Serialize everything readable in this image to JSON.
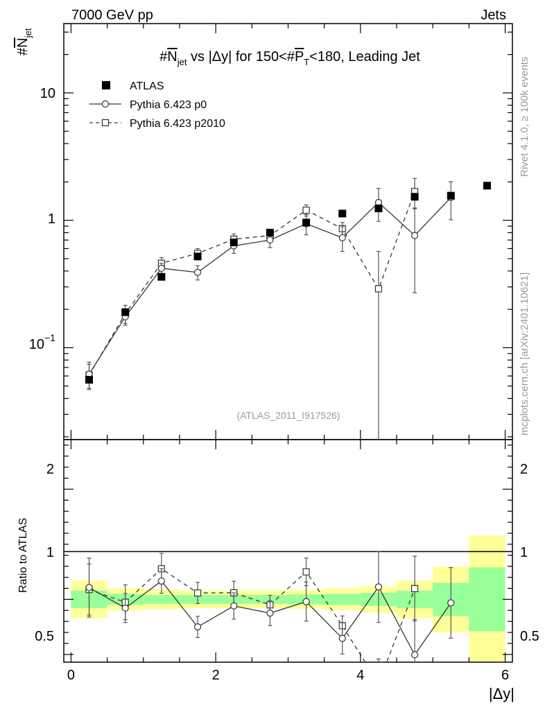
{
  "header": {
    "left": "7000 GeV pp",
    "right": "Jets"
  },
  "side_text": {
    "rivet": "Rivet 4.1.0, ≥ 100k events",
    "mcplots": "mcplots.cern.ch [arXiv:2401.10621]"
  },
  "watermark": "(ATLAS_2011_I917526)",
  "chart_data": {
    "type": "scatter",
    "title": "#N_jet vs |Δy| for 150<#P_T<180, Leading Jet",
    "title_parts": {
      "a": "#",
      "b": "N",
      "b_sub": "jet",
      "c": " vs |Δy| for 150<#",
      "d": "P",
      "d_sub": "T",
      "e": "<180, Leading Jet"
    },
    "ylabel": "#N_jet",
    "ylabel_parts": {
      "a": "#",
      "b": "N",
      "sub": "jet"
    },
    "xlabel": "|Δy|",
    "ratio_ylabel": "Ratio to ATLAS",
    "xlim": [
      -0.1,
      6.1
    ],
    "ylim": [
      0.019,
      35
    ],
    "yscale": "log",
    "ratio_ylim": [
      0.43,
      2.45
    ],
    "x_ticks": [
      0,
      2,
      4,
      6
    ],
    "x_tick_labels": [
      "0",
      "2",
      "4",
      "6"
    ],
    "y_tick_labels": [
      {
        "value": 10,
        "mantissa": "10",
        "exp": ""
      },
      {
        "value": 1,
        "mantissa": "1",
        "exp": ""
      },
      {
        "value": 0.1,
        "mantissa": "10",
        "exp": "−1"
      }
    ],
    "ratio_ticks": [
      0.5,
      1,
      2
    ],
    "ratio_tick_labels": [
      "0.5",
      "1",
      "2"
    ],
    "legend": [
      "ATLAS",
      "Pythia 6.423 p0",
      "Pythia 6.423 p2010"
    ],
    "data": {
      "name": "ATLAS",
      "x": [
        0.25,
        0.75,
        1.25,
        1.75,
        2.25,
        2.75,
        3.25,
        3.75,
        4.25,
        4.75,
        5.25,
        5.75
      ],
      "y": [
        0.056,
        0.19,
        0.36,
        0.52,
        0.67,
        0.8,
        0.96,
        1.13,
        1.24,
        1.53,
        1.56,
        1.87
      ],
      "stat_band": [
        0.08,
        0.05,
        0.04,
        0.04,
        0.04,
        0.04,
        0.045,
        0.05,
        0.06,
        0.08,
        0.15,
        0.29
      ],
      "total_band": [
        0.17,
        0.1,
        0.09,
        0.08,
        0.08,
        0.08,
        0.085,
        0.1,
        0.12,
        0.17,
        0.3,
        0.58
      ]
    },
    "series": [
      {
        "name": "Pythia 6.423 p0",
        "x": [
          0.25,
          0.75,
          1.25,
          1.75,
          2.25,
          2.75,
          3.25,
          3.75,
          4.25,
          4.75,
          5.25
        ],
        "y": [
          0.062,
          0.175,
          0.42,
          0.39,
          0.63,
          0.7,
          0.94,
          0.73,
          1.38,
          0.76,
          1.51
        ],
        "err": [
          0.015,
          0.025,
          0.04,
          0.05,
          0.08,
          0.09,
          0.17,
          0.16,
          0.4,
          0.49,
          0.5
        ],
        "style": "solid",
        "marker": "circle"
      },
      {
        "name": "Pythia 6.423 p2010",
        "x": [
          0.25,
          0.75,
          1.25,
          1.75,
          2.25,
          2.75,
          3.25,
          3.75,
          4.25,
          4.75
        ],
        "y": [
          0.061,
          0.185,
          0.46,
          0.55,
          0.71,
          0.76,
          1.2,
          0.86,
          0.29,
          1.68
        ],
        "err": [
          0.013,
          0.03,
          0.05,
          0.05,
          0.07,
          0.07,
          0.12,
          0.1,
          0.28,
          0.45
        ],
        "style": "dashed",
        "marker": "square"
      }
    ]
  }
}
